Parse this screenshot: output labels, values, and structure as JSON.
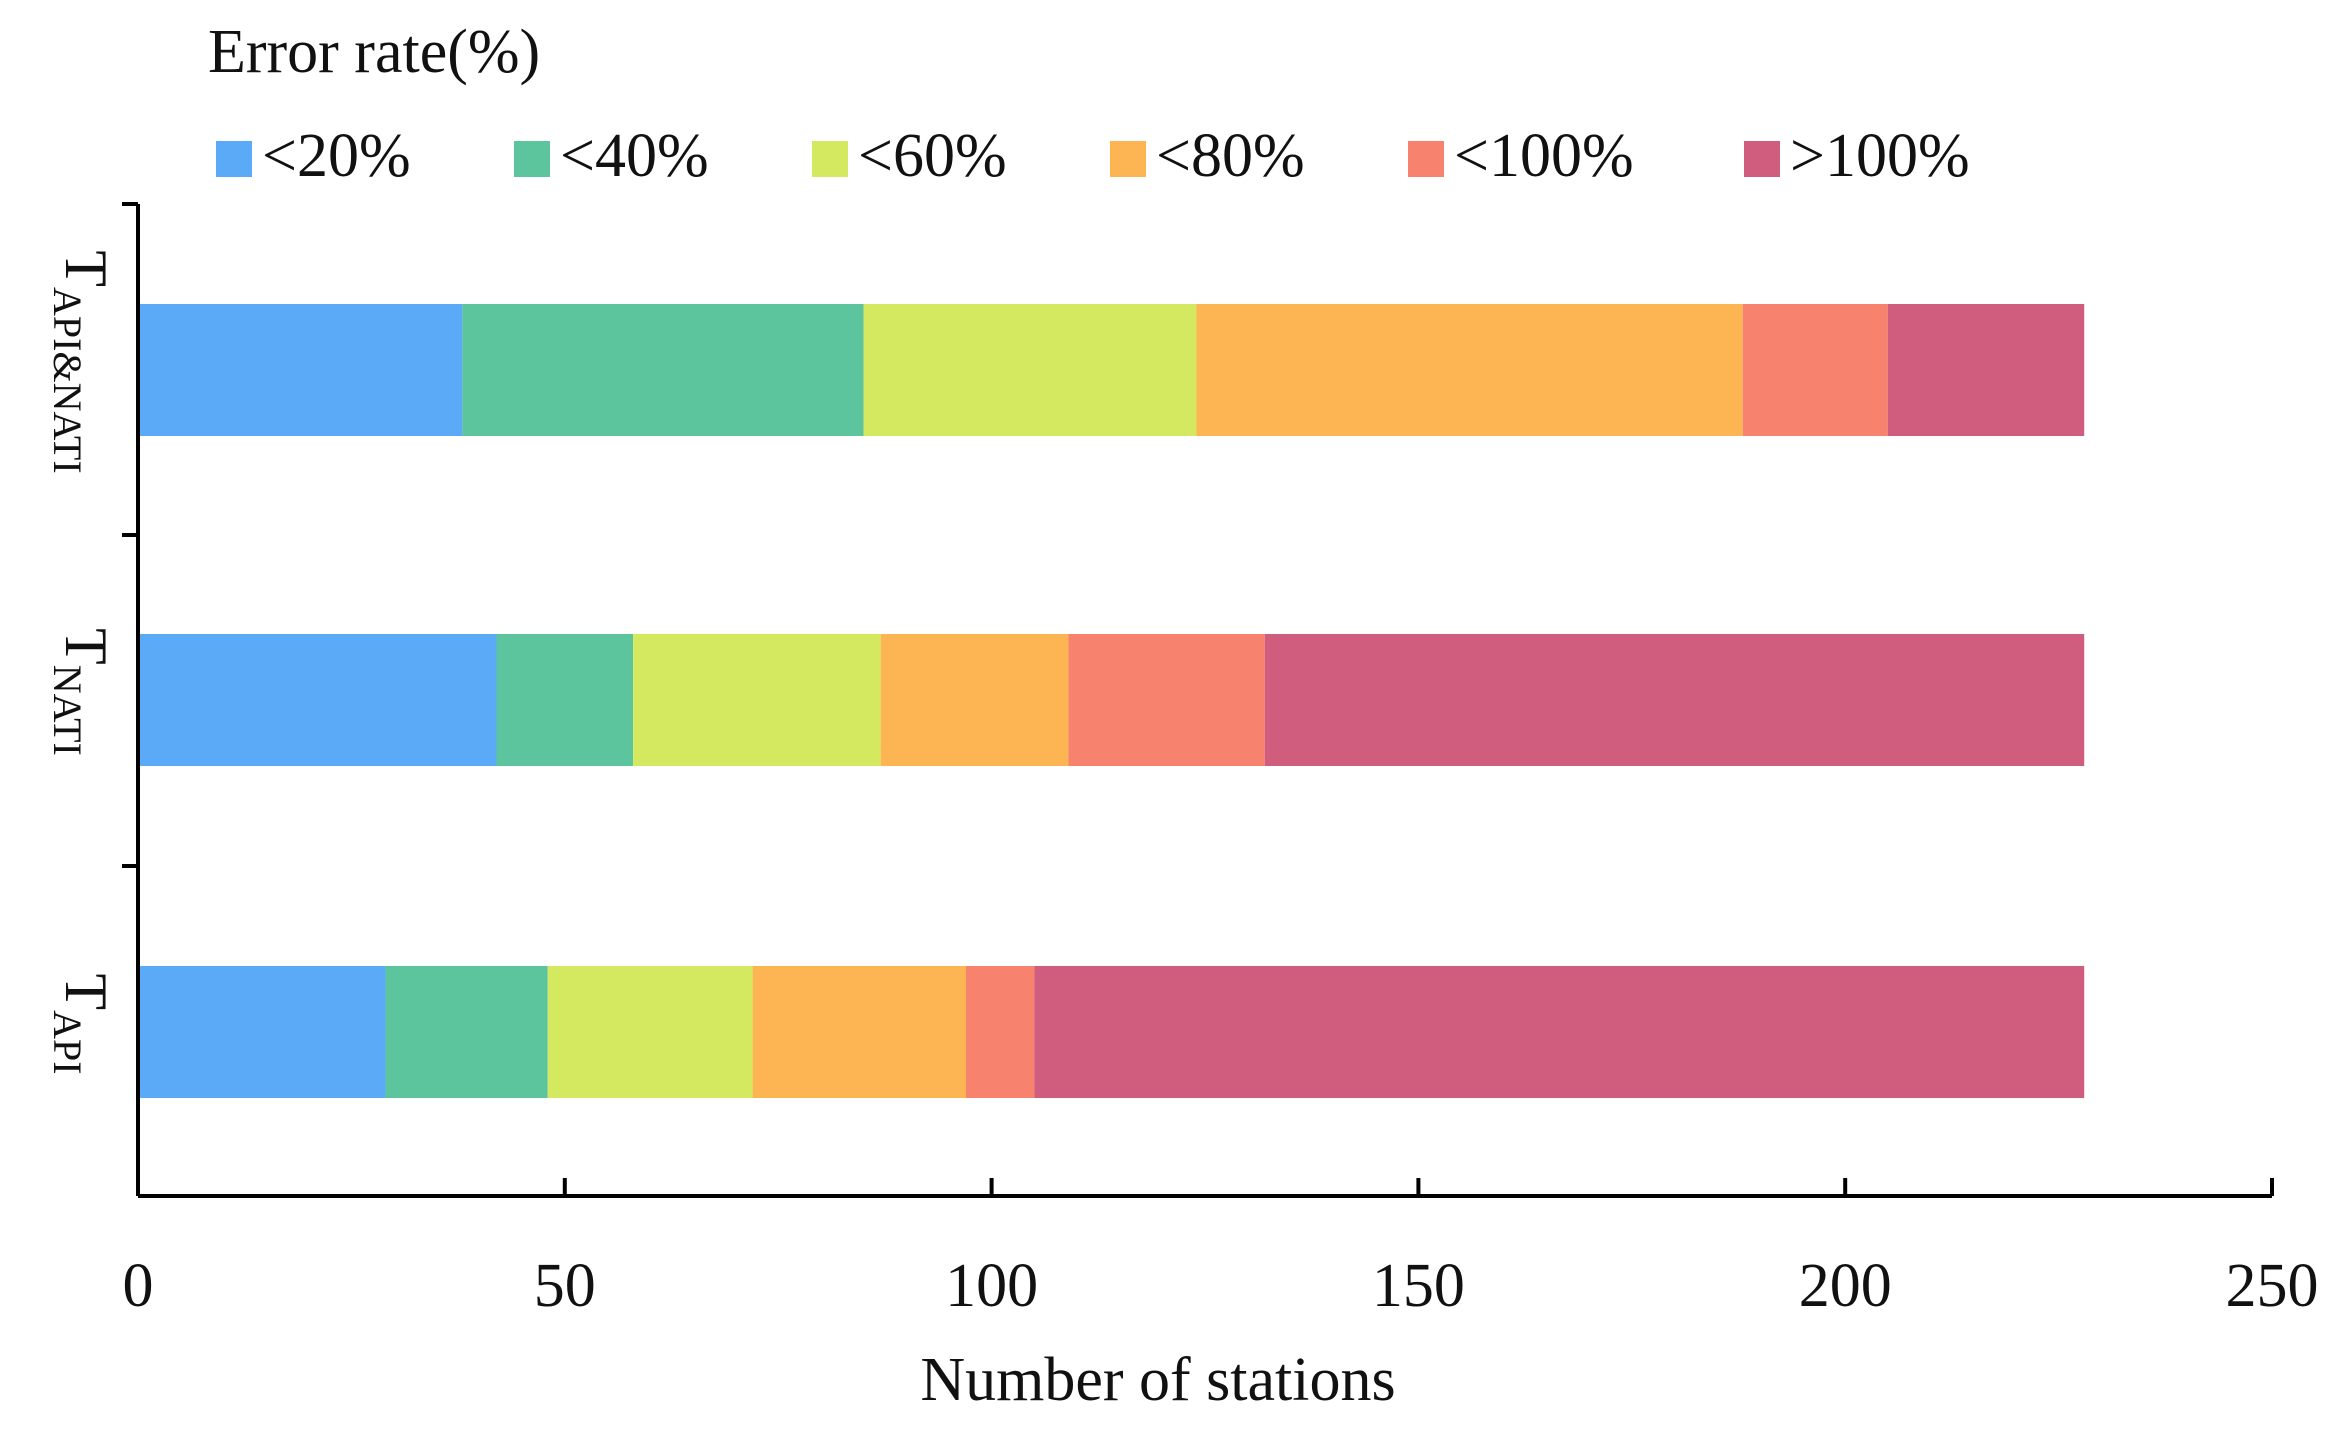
{
  "chart_data": {
    "type": "bar",
    "orientation": "horizontal",
    "stacked": true,
    "title": "Error rate(%)",
    "xlabel": "Number of stations",
    "ylabel": "",
    "xlim": [
      0,
      250
    ],
    "xticks": [
      "0",
      "50",
      "100",
      "150",
      "200",
      "250"
    ],
    "categories": [
      {
        "main": "T",
        "sub": "API&NATI"
      },
      {
        "main": "T",
        "sub": "NATI"
      },
      {
        "main": "T",
        "sub": "API"
      }
    ],
    "series": [
      {
        "name": "<20%",
        "color": "#5aaaf8",
        "values": [
          38,
          42,
          29
        ]
      },
      {
        "name": "<40%",
        "color": "#5cc59e",
        "values": [
          47,
          16,
          19
        ]
      },
      {
        "name": "<60%",
        "color": "#d5e960",
        "values": [
          39,
          29,
          24
        ]
      },
      {
        "name": "<80%",
        "color": "#fdb452",
        "values": [
          64,
          22,
          25
        ]
      },
      {
        "name": "<100%",
        "color": "#f7836e",
        "values": [
          17,
          23,
          8
        ]
      },
      {
        "name": ">100%",
        "color": "#d05c7e",
        "values": [
          23,
          96,
          123
        ]
      }
    ],
    "legend_position": "top",
    "grid": false
  }
}
